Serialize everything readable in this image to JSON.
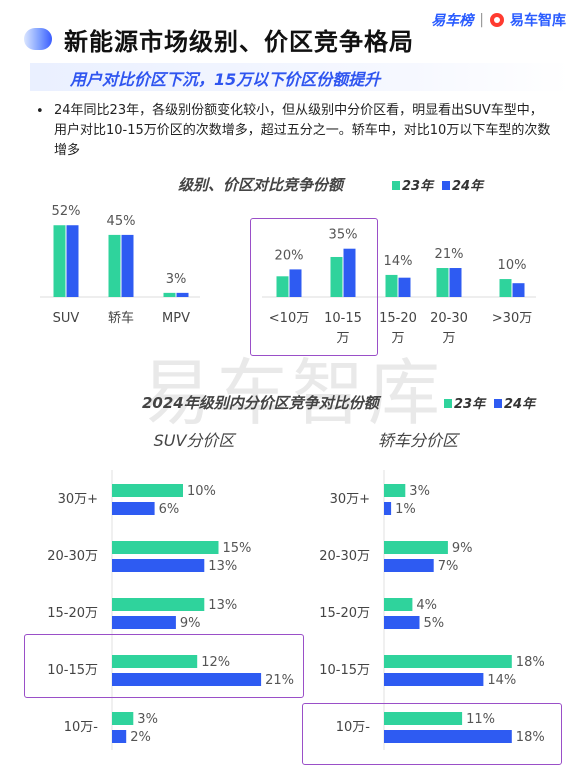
{
  "header": {
    "title": "新能源市场级别、价区竞争格局",
    "brand_left": "易车榜",
    "brand_sep": "|",
    "brand_right": "易车智库",
    "subtitle": "用户对比价区下沉，15万以下价区份额提升",
    "bullet": "•",
    "paragraph": "24年同比23年，各级别份额变化较小，但从级别中分价区看，明显看出SUV车型中，用户对比10-15万价区的次数增多，超过五分之一。轿车中，对比10万以下车型的次数增多",
    "watermark": "易车智库"
  },
  "colors": {
    "y23": "#2fd39c",
    "y24": "#2e5bf2",
    "highlight": "#9a4fc8"
  },
  "chart_data": [
    {
      "type": "bar",
      "title": "级别、价区对比竞争份额",
      "legend": [
        "23年",
        "24年"
      ],
      "legend_position": "top-right",
      "groups": [
        {
          "categories": [
            "SUV",
            "轿车",
            "MPV"
          ],
          "labels": [
            "52%",
            "45%",
            "3%"
          ],
          "series": [
            {
              "name": "23年",
              "values": [
                52,
                45,
                3
              ]
            },
            {
              "name": "24年",
              "values": [
                52,
                45,
                3
              ]
            }
          ]
        },
        {
          "categories": [
            "<10万",
            "10-15万",
            "15-20万",
            "20-30万",
            ">30万"
          ],
          "labels": [
            "20%",
            "35%",
            "14%",
            "21%",
            "10%"
          ],
          "series": [
            {
              "name": "23年",
              "values": [
                15,
                29,
                16,
                21,
                13
              ]
            },
            {
              "name": "24年",
              "values": [
                20,
                35,
                14,
                21,
                10
              ]
            }
          ]
        }
      ]
    },
    {
      "type": "bar",
      "orientation": "horizontal",
      "title": "2024年级别内分价区竞争对比份额",
      "legend": [
        "23年",
        "24年"
      ],
      "legend_position": "top-right",
      "panels": [
        {
          "subtitle": "SUV分价区",
          "categories": [
            "30万+",
            "20-30万",
            "15-20万",
            "10-15万",
            "10万-"
          ],
          "series": [
            {
              "name": "23年",
              "values": [
                10,
                15,
                13,
                12,
                3
              ]
            },
            {
              "name": "24年",
              "values": [
                6,
                13,
                9,
                21,
                2
              ]
            }
          ]
        },
        {
          "subtitle": "轿车分价区",
          "categories": [
            "30万+",
            "20-30万",
            "15-20万",
            "10-15万",
            "10万-"
          ],
          "series": [
            {
              "name": "23年",
              "values": [
                3,
                9,
                4,
                18,
                11
              ]
            },
            {
              "name": "24年",
              "values": [
                1,
                7,
                5,
                14,
                18
              ]
            }
          ]
        }
      ]
    }
  ]
}
